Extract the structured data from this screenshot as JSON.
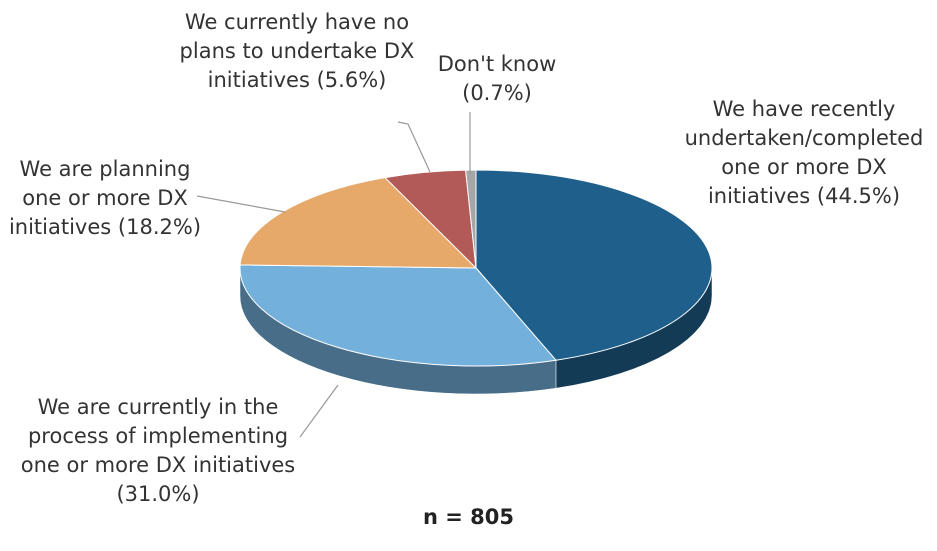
{
  "chart_data": {
    "type": "pie",
    "categories": [
      "We have recently undertaken/completed one or more DX initiatives",
      "We are currently in the process of implementing one or more DX initiatives",
      "We are planning one or more DX initiatives",
      "We currently have no plans to undertake DX initiatives",
      "Don't know"
    ],
    "values": [
      44.5,
      31.0,
      18.2,
      5.6,
      0.7
    ],
    "value_labels": [
      "(44.5%)",
      "(31.0%)",
      "(18.2%)",
      "(5.6%)",
      "(0.7%)"
    ],
    "colors": [
      "#1f5f8b",
      "#74b0dc",
      "#e6a96a",
      "#b25a57",
      "#a6a6a6"
    ],
    "annotation": "n = 805"
  }
}
